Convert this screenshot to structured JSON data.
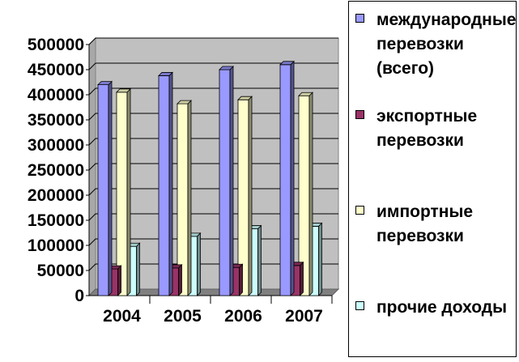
{
  "chart_data": {
    "type": "bar",
    "style": "3d-clustered-column",
    "categories": [
      "2004",
      "2005",
      "2006",
      "2007"
    ],
    "series": [
      {
        "name": "международные перевозки (всего)",
        "color": "#9999ff",
        "values": [
          420000,
          438000,
          450000,
          460000
        ]
      },
      {
        "name": "экспортные перевозки",
        "color": "#993366",
        "values": [
          53000,
          55000,
          56000,
          60000
        ]
      },
      {
        "name": "импортные перевозки",
        "color": "#ffffcc",
        "values": [
          405000,
          382000,
          390000,
          398000
        ]
      },
      {
        "name": "прочие доходы",
        "color": "#ccffff",
        "values": [
          98000,
          118000,
          133000,
          138000
        ]
      }
    ],
    "yticks": [
      "0",
      "50000",
      "100000",
      "150000",
      "200000",
      "250000",
      "300000",
      "350000",
      "400000",
      "450000",
      "500000"
    ],
    "ylim": [
      0,
      500000
    ],
    "grid": true,
    "plot_background": "#c0c0c0",
    "legend_position": "right"
  },
  "legend": {
    "items": [
      {
        "label": "международные перевозки (всего)",
        "color": "#9999ff"
      },
      {
        "label": "экспортные перевозки",
        "color": "#993366"
      },
      {
        "label": "импортные перевозки",
        "color": "#ffffcc"
      },
      {
        "label": "прочие доходы",
        "color": "#ccffff"
      }
    ]
  }
}
